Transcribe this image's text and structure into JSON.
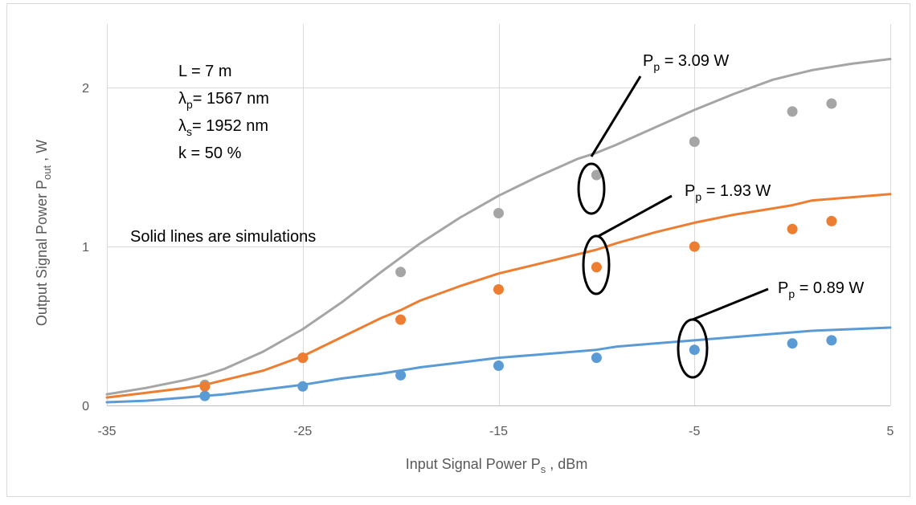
{
  "chart_data": {
    "type": "scatter",
    "xlabel": {
      "main": "Input Signal Power P",
      "sub": "s",
      "tail": " , dBm"
    },
    "ylabel": {
      "main": "Output Signal Power P",
      "sub": "out",
      "tail": " , W"
    },
    "xlim": [
      -35,
      5
    ],
    "ylim": [
      0,
      2.4
    ],
    "x_ticks": [
      -35,
      -25,
      -15,
      -5,
      5
    ],
    "y_ticks": [
      0,
      1,
      2
    ],
    "grid": "vertical and horizontal major gridlines",
    "legend": "none",
    "notes": {
      "length": "L = 7 m",
      "pump_wl": {
        "sym": "λ",
        "sub": "p",
        "tail": "= 1567 nm"
      },
      "signal_wl": {
        "sym": "λ",
        "sub": "s",
        "tail": "= 1952  nm"
      },
      "coupling": "k = 50 %",
      "caption": "Solid lines are simulations"
    },
    "series": [
      {
        "key": "high",
        "callout": {
          "sym": "P",
          "sub": "p",
          "tail": " = 3.09 W"
        },
        "color": "#A5A5A5",
        "sim": {
          "x": [
            -35,
            -33,
            -31,
            -30,
            -29,
            -27,
            -25,
            -23,
            -21,
            -20,
            -19,
            -17,
            -15,
            -13,
            -11,
            -10,
            -9,
            -7,
            -5,
            -3,
            -1,
            0,
            1,
            3,
            5
          ],
          "y": [
            0.07,
            0.11,
            0.16,
            0.19,
            0.23,
            0.34,
            0.48,
            0.65,
            0.84,
            0.93,
            1.02,
            1.18,
            1.32,
            1.44,
            1.55,
            1.59,
            1.64,
            1.75,
            1.86,
            1.96,
            2.05,
            2.08,
            2.11,
            2.15,
            2.18
          ]
        },
        "measured": {
          "x": [
            -30,
            -25,
            -20,
            -15,
            -10,
            -5,
            0,
            2
          ],
          "y": [
            0.13,
            0.3,
            0.84,
            1.21,
            1.45,
            1.66,
            1.85,
            1.9
          ]
        }
      },
      {
        "key": "mid",
        "callout": {
          "sym": "P",
          "sub": "p",
          "tail": " = 1.93 W"
        },
        "color": "#ED7D31",
        "sim": {
          "x": [
            -35,
            -33,
            -31,
            -30,
            -29,
            -27,
            -25,
            -23,
            -21,
            -20,
            -19,
            -17,
            -15,
            -13,
            -11,
            -10,
            -9,
            -7,
            -5,
            -3,
            -1,
            0,
            1,
            3,
            5
          ],
          "y": [
            0.05,
            0.08,
            0.11,
            0.13,
            0.16,
            0.22,
            0.31,
            0.43,
            0.55,
            0.6,
            0.66,
            0.75,
            0.83,
            0.89,
            0.95,
            0.98,
            1.02,
            1.09,
            1.15,
            1.2,
            1.24,
            1.26,
            1.29,
            1.31,
            1.33
          ]
        },
        "measured": {
          "x": [
            -30,
            -25,
            -20,
            -15,
            -10,
            -5,
            0,
            2
          ],
          "y": [
            0.12,
            0.3,
            0.54,
            0.73,
            0.87,
            1.0,
            1.11,
            1.16
          ]
        }
      },
      {
        "key": "low",
        "callout": {
          "sym": "P",
          "sub": "p",
          "tail": " = 0.89 W"
        },
        "color": "#5B9BD5",
        "sim": {
          "x": [
            -35,
            -33,
            -31,
            -30,
            -29,
            -27,
            -25,
            -23,
            -21,
            -20,
            -19,
            -17,
            -15,
            -13,
            -11,
            -10,
            -9,
            -7,
            -5,
            -3,
            -1,
            0,
            1,
            3,
            5
          ],
          "y": [
            0.02,
            0.03,
            0.05,
            0.06,
            0.07,
            0.1,
            0.13,
            0.17,
            0.2,
            0.22,
            0.24,
            0.27,
            0.3,
            0.32,
            0.34,
            0.35,
            0.37,
            0.39,
            0.41,
            0.43,
            0.45,
            0.46,
            0.47,
            0.48,
            0.49
          ]
        },
        "measured": {
          "x": [
            -30,
            -25,
            -20,
            -15,
            -10,
            -5,
            0,
            2
          ],
          "y": [
            0.06,
            0.12,
            0.19,
            0.25,
            0.3,
            0.35,
            0.39,
            0.41
          ]
        }
      }
    ]
  }
}
